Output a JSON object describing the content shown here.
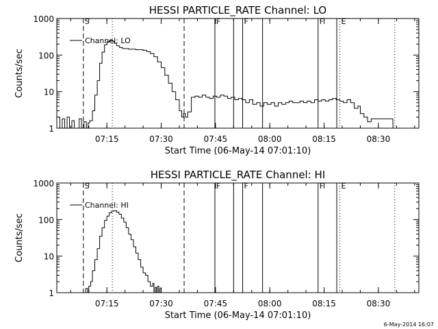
{
  "chart_data": [
    {
      "type": "line",
      "title": "HESSI PARTICLE_RATE Channel: LO",
      "xlabel": "Start Time (06-May-14 07:01:10)",
      "ylabel": "Counts/sec",
      "yscale": "log",
      "xlim": [
        "07:01:10",
        "08:41:10"
      ],
      "ylim": [
        1,
        1000
      ],
      "xticks": [
        "07:15",
        "07:30",
        "07:45",
        "08:00",
        "08:15",
        "08:30"
      ],
      "yticks": [
        "1",
        "10",
        "100",
        "1000"
      ],
      "legend_position": "top-left",
      "series": [
        {
          "name": "Channel: LO",
          "x": [
            "07:01:10",
            "07:02:00",
            "07:02:40",
            "07:03:20",
            "07:04:00",
            "07:04:40",
            "07:05:20",
            "07:06:00",
            "07:06:40",
            "07:07:20",
            "07:08:00",
            "07:08:40",
            "07:09:20",
            "07:09:50",
            "07:10:15",
            "07:11:00",
            "07:11:40",
            "07:12:20",
            "07:13:00",
            "07:13:40",
            "07:14:20",
            "07:15:00",
            "07:15:40",
            "07:16:20",
            "07:17:00",
            "07:17:40",
            "07:18:30",
            "07:19:20",
            "07:20:10",
            "07:21:00",
            "07:22:00",
            "07:23:00",
            "07:24:00",
            "07:25:00",
            "07:26:00",
            "07:27:00",
            "07:28:00",
            "07:29:00",
            "07:30:00",
            "07:31:00",
            "07:32:00",
            "07:33:00",
            "07:34:00",
            "07:35:00",
            "07:35:40",
            "07:36:10",
            "07:36:40",
            "07:37:20",
            "07:38:20",
            "07:39:20",
            "07:40:20",
            "07:41:20",
            "07:42:20",
            "07:43:20",
            "07:44:20",
            "07:45:20",
            "07:46:20",
            "07:47:20",
            "07:48:20",
            "07:49:20",
            "07:50:20",
            "07:51:20",
            "07:52:20",
            "07:53:20",
            "07:54:20",
            "07:55:20",
            "07:56:20",
            "07:57:20",
            "07:58:20",
            "07:59:20",
            "08:00:20",
            "08:01:20",
            "08:02:20",
            "08:03:20",
            "08:04:20",
            "08:05:20",
            "08:06:20",
            "08:07:20",
            "08:08:20",
            "08:09:20",
            "08:10:20",
            "08:11:20",
            "08:12:20",
            "08:13:20",
            "08:14:20",
            "08:15:20",
            "08:16:20",
            "08:17:20",
            "08:18:20",
            "08:19:20",
            "08:20:20",
            "08:21:20",
            "08:22:20",
            "08:23:20",
            "08:24:20",
            "08:25:00",
            "08:26:00",
            "08:27:00",
            "08:28:00",
            "08:29:00",
            "08:30:00",
            "08:31:00",
            "08:32:00",
            "08:33:00",
            "08:34:00",
            "08:35:00"
          ],
          "y": [
            2,
            1,
            1.8,
            1,
            2,
            1,
            1.6,
            1,
            1,
            1.8,
            1,
            1.5,
            1,
            1.4,
            1.6,
            3,
            8,
            20,
            60,
            120,
            190,
            230,
            250,
            240,
            210,
            180,
            160,
            150,
            150,
            145,
            145,
            140,
            140,
            135,
            125,
            110,
            90,
            65,
            45,
            28,
            17,
            10,
            6,
            3,
            2,
            2.5,
            2,
            2.8,
            7,
            7.5,
            7,
            8,
            7,
            6.5,
            7.5,
            7,
            8,
            7.5,
            6.5,
            7,
            6,
            6.5,
            6,
            5,
            6,
            4.5,
            5,
            4,
            5,
            4.5,
            5,
            4,
            5,
            4.5,
            5,
            5.5,
            5,
            5,
            5.5,
            5,
            5.5,
            5,
            6,
            5.5,
            6,
            5.5,
            6,
            6.5,
            6,
            5.5,
            5,
            6,
            5,
            3.5,
            4,
            2.5,
            2,
            1.5,
            1.8,
            1.8,
            1.8,
            1.8,
            1.8,
            1.8,
            1,
            1
          ]
        }
      ],
      "markers": [
        {
          "time": "07:08:30",
          "style": "dashed",
          "label": "S"
        },
        {
          "time": "07:16:30",
          "style": "dotted",
          "label": ""
        },
        {
          "time": "07:36:20",
          "style": "dashed",
          "label": ""
        },
        {
          "time": "07:44:50",
          "style": "solid",
          "label": "F"
        },
        {
          "time": "07:50:00",
          "style": "solid",
          "label": ""
        },
        {
          "time": "07:52:30",
          "style": "solid",
          "label": "F"
        },
        {
          "time": "07:58:00",
          "style": "solid",
          "label": ""
        },
        {
          "time": "08:13:20",
          "style": "solid",
          "label": "F"
        },
        {
          "time": "08:18:30",
          "style": "solid",
          "label": ""
        },
        {
          "time": "08:19:20",
          "style": "dotted",
          "label": "E"
        },
        {
          "time": "08:34:30",
          "style": "dotted",
          "label": ""
        }
      ]
    },
    {
      "type": "line",
      "title": "HESSI PARTICLE_RATE Channel: HI",
      "xlabel": "Start Time (06-May-14 07:01:10)",
      "ylabel": "Counts/sec",
      "yscale": "log",
      "xlim": [
        "07:01:10",
        "08:41:10"
      ],
      "ylim": [
        1,
        1000
      ],
      "xticks": [
        "07:15",
        "07:30",
        "07:45",
        "08:00",
        "08:15",
        "08:30"
      ],
      "yticks": [
        "1",
        "10",
        "100",
        "1000"
      ],
      "legend_position": "top-left",
      "series": [
        {
          "name": "Channel: HI",
          "x": [
            "07:08:40",
            "07:09:10",
            "07:09:40",
            "07:10:00",
            "07:10:30",
            "07:11:00",
            "07:11:40",
            "07:12:20",
            "07:13:00",
            "07:13:40",
            "07:14:20",
            "07:15:00",
            "07:15:40",
            "07:16:20",
            "07:17:00",
            "07:17:40",
            "07:18:20",
            "07:19:00",
            "07:19:40",
            "07:20:20",
            "07:21:00",
            "07:21:40",
            "07:22:20",
            "07:23:00",
            "07:23:40",
            "07:24:20",
            "07:25:00",
            "07:25:40",
            "07:26:20",
            "07:27:00",
            "07:27:40",
            "07:28:00",
            "07:28:20",
            "07:28:40",
            "07:29:00",
            "07:29:20",
            "07:29:40",
            "07:30:00"
          ],
          "y": [
            1,
            1.3,
            1,
            1.5,
            2,
            4,
            8,
            16,
            35,
            60,
            95,
            125,
            155,
            170,
            175,
            160,
            140,
            110,
            85,
            60,
            40,
            28,
            18,
            12,
            8,
            5,
            3.5,
            3,
            2,
            1.5,
            1.8,
            1,
            1.4,
            1,
            1.5,
            1,
            1.3,
            1
          ]
        }
      ],
      "markers": [
        {
          "time": "07:08:30",
          "style": "dashed",
          "label": "S"
        },
        {
          "time": "07:16:30",
          "style": "dotted",
          "label": ""
        },
        {
          "time": "07:36:20",
          "style": "dashed",
          "label": ""
        },
        {
          "time": "07:44:50",
          "style": "solid",
          "label": "F"
        },
        {
          "time": "07:50:00",
          "style": "solid",
          "label": ""
        },
        {
          "time": "07:52:30",
          "style": "solid",
          "label": "F"
        },
        {
          "time": "07:58:00",
          "style": "solid",
          "label": ""
        },
        {
          "time": "08:13:20",
          "style": "solid",
          "label": "F"
        },
        {
          "time": "08:18:30",
          "style": "solid",
          "label": ""
        },
        {
          "time": "08:19:20",
          "style": "dotted",
          "label": "E"
        },
        {
          "time": "08:34:30",
          "style": "dotted",
          "label": ""
        }
      ]
    }
  ],
  "footer": {
    "timestamp": "6-May-2014 16:07"
  }
}
